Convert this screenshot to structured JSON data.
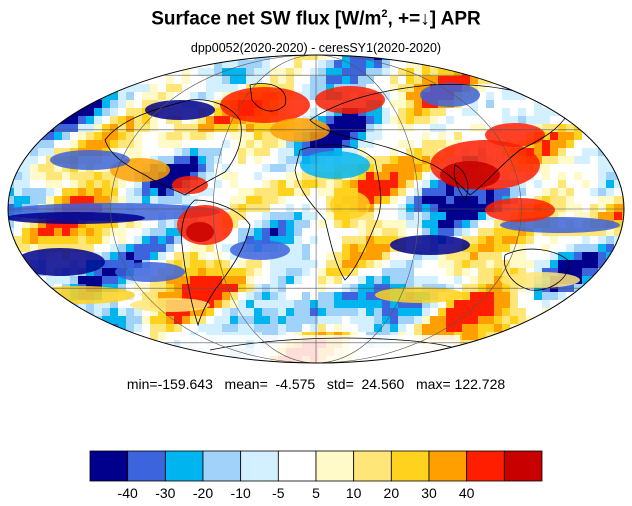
{
  "title": {
    "prefix": "Surface net SW flux [W/m",
    "superscript": "2",
    "suffix": ", +=↓]  APR"
  },
  "subtitle": "dpp0052(2020-2020) - ceresSY1(2020-2020)",
  "stats": {
    "min": "min=-159.643",
    "mean": "mean=  -4.575",
    "std": "std=  24.560",
    "max": "max= 122.728"
  },
  "colorbar": {
    "colors": [
      "#00008c",
      "#3c64dc",
      "#00b4f0",
      "#a0d2fa",
      "#d2f0ff",
      "#ffffff",
      "#fffac8",
      "#ffe678",
      "#ffd21e",
      "#ffa000",
      "#ff1e00",
      "#c80000"
    ],
    "labels": [
      "-40",
      "-30",
      "-20",
      "-10",
      "-5",
      "5",
      "10",
      "20",
      "30",
      "40"
    ]
  },
  "map": {
    "projection": "Mollweide",
    "variable": "Surface net SW flux difference",
    "month": "APR"
  }
}
